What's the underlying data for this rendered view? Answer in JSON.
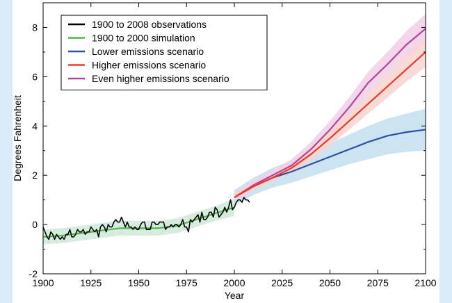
{
  "chart_data": {
    "type": "line",
    "xlabel": "Year",
    "ylabel": "Degrees Fahrenheit",
    "xlim": [
      1900,
      2100
    ],
    "ylim": [
      -2,
      9
    ],
    "xticks": [
      1900,
      1925,
      1950,
      1975,
      2000,
      2025,
      2050,
      2075,
      2100
    ],
    "yticks": [
      -2,
      0,
      2,
      4,
      6,
      8
    ],
    "legend_position": "top-left",
    "series": [
      {
        "name": "1900 to 2008 observations",
        "color": "#000000",
        "x": [
          1900,
          1901,
          1902,
          1903,
          1904,
          1905,
          1906,
          1907,
          1908,
          1909,
          1910,
          1911,
          1912,
          1913,
          1914,
          1915,
          1916,
          1917,
          1918,
          1919,
          1920,
          1921,
          1922,
          1923,
          1924,
          1925,
          1926,
          1927,
          1928,
          1929,
          1930,
          1931,
          1932,
          1933,
          1934,
          1935,
          1936,
          1937,
          1938,
          1939,
          1940,
          1941,
          1942,
          1943,
          1944,
          1945,
          1946,
          1947,
          1948,
          1949,
          1950,
          1951,
          1952,
          1953,
          1954,
          1955,
          1956,
          1957,
          1958,
          1959,
          1960,
          1961,
          1962,
          1963,
          1964,
          1965,
          1966,
          1967,
          1968,
          1969,
          1970,
          1971,
          1972,
          1973,
          1974,
          1975,
          1976,
          1977,
          1978,
          1979,
          1980,
          1981,
          1982,
          1983,
          1984,
          1985,
          1986,
          1987,
          1988,
          1989,
          1990,
          1991,
          1992,
          1993,
          1994,
          1995,
          1996,
          1997,
          1998,
          1999,
          2000,
          2001,
          2002,
          2003,
          2004,
          2005,
          2006,
          2007,
          2008
        ],
        "values": [
          -0.1,
          -0.3,
          -0.5,
          -0.6,
          -0.3,
          -0.4,
          -0.6,
          -0.4,
          -0.5,
          -0.6,
          -0.5,
          -0.6,
          -0.4,
          -0.4,
          -0.2,
          -0.5,
          -0.5,
          -0.4,
          -0.2,
          -0.3,
          -0.3,
          -0.2,
          -0.4,
          -0.3,
          -0.3,
          -0.1,
          -0.2,
          -0.3,
          -0.2,
          -0.5,
          -0.1,
          0.0,
          -0.1,
          -0.3,
          0.0,
          -0.1,
          -0.1,
          0.1,
          0.2,
          0.1,
          0.1,
          0.3,
          0.1,
          -0.1,
          0.1,
          -0.1,
          -0.1,
          -0.2,
          -0.1,
          -0.2,
          -0.2,
          0.0,
          0.1,
          0.1,
          -0.2,
          -0.2,
          -0.2,
          0.1,
          0.1,
          0.0,
          0.0,
          0.1,
          0.1,
          0.1,
          -0.2,
          -0.1,
          -0.1,
          0.0,
          -0.1,
          0.0,
          0.0,
          -0.1,
          0.0,
          0.2,
          -0.1,
          -0.1,
          -0.3,
          0.2,
          0.1,
          0.2,
          0.3,
          0.4,
          0.1,
          0.5,
          0.2,
          0.2,
          0.3,
          0.5,
          0.5,
          0.3,
          0.7,
          0.6,
          0.3,
          0.4,
          0.5,
          0.7,
          0.5,
          0.7,
          1.0,
          0.6,
          0.7,
          0.9,
          1.0,
          1.0,
          0.9,
          1.1,
          1.0,
          1.0,
          0.9
        ]
      },
      {
        "name": "1900 to 2000 simulation",
        "color": "#4db848",
        "band_color": "#cfe9d8",
        "x": [
          1900,
          1910,
          1920,
          1930,
          1940,
          1950,
          1960,
          1970,
          1980,
          1990,
          2000
        ],
        "values": [
          -0.5,
          -0.45,
          -0.35,
          -0.25,
          -0.15,
          -0.15,
          -0.15,
          -0.05,
          0.2,
          0.45,
          0.7
        ],
        "band_low": [
          -0.8,
          -0.75,
          -0.65,
          -0.55,
          -0.45,
          -0.45,
          -0.45,
          -0.35,
          -0.1,
          0.15,
          0.35
        ],
        "band_high": [
          -0.2,
          -0.15,
          -0.05,
          0.05,
          0.15,
          0.15,
          0.15,
          0.25,
          0.5,
          0.75,
          1.05
        ]
      },
      {
        "name": "Lower emissions scenario",
        "color": "#2e4fa0",
        "band_color": "#c3dff0",
        "x": [
          2000,
          2010,
          2020,
          2030,
          2040,
          2050,
          2060,
          2070,
          2080,
          2090,
          2100
        ],
        "values": [
          1.1,
          1.55,
          1.9,
          2.15,
          2.45,
          2.75,
          3.05,
          3.35,
          3.6,
          3.75,
          3.85
        ],
        "band_low": [
          0.8,
          1.2,
          1.5,
          1.7,
          1.95,
          2.2,
          2.45,
          2.65,
          2.85,
          2.95,
          3.0
        ],
        "band_high": [
          1.4,
          1.9,
          2.3,
          2.6,
          2.95,
          3.3,
          3.65,
          4.0,
          4.3,
          4.5,
          4.7
        ]
      },
      {
        "name": "Higher emissions scenario",
        "color": "#e83a2e",
        "band_color": "#f9d3cd",
        "x": [
          2000,
          2010,
          2020,
          2030,
          2040,
          2050,
          2060,
          2070,
          2080,
          2090,
          2100
        ],
        "values": [
          1.1,
          1.55,
          1.9,
          2.3,
          2.85,
          3.5,
          4.2,
          4.9,
          5.6,
          6.3,
          7.0
        ],
        "band_low": [
          1.0,
          1.4,
          1.75,
          2.1,
          2.6,
          3.2,
          3.85,
          4.5,
          5.15,
          5.8,
          6.4
        ],
        "band_high": [
          1.25,
          1.7,
          2.05,
          2.5,
          3.1,
          3.8,
          4.55,
          5.3,
          6.05,
          6.8,
          7.6
        ]
      },
      {
        "name": "Even higher emissions scenario",
        "color": "#b2459a",
        "band_color": "#f2cfe6",
        "x": [
          2000,
          2010,
          2020,
          2030,
          2040,
          2050,
          2060,
          2070,
          2080,
          2090,
          2100
        ],
        "values": [
          1.1,
          1.6,
          2.0,
          2.4,
          3.05,
          3.85,
          4.75,
          5.75,
          6.5,
          7.3,
          7.95
        ],
        "band_low": [
          0.95,
          1.4,
          1.8,
          2.15,
          2.75,
          3.5,
          4.35,
          5.3,
          6.0,
          6.75,
          7.4
        ],
        "band_high": [
          1.3,
          1.8,
          2.2,
          2.65,
          3.35,
          4.2,
          5.15,
          6.2,
          7.0,
          7.85,
          8.55
        ]
      }
    ]
  }
}
